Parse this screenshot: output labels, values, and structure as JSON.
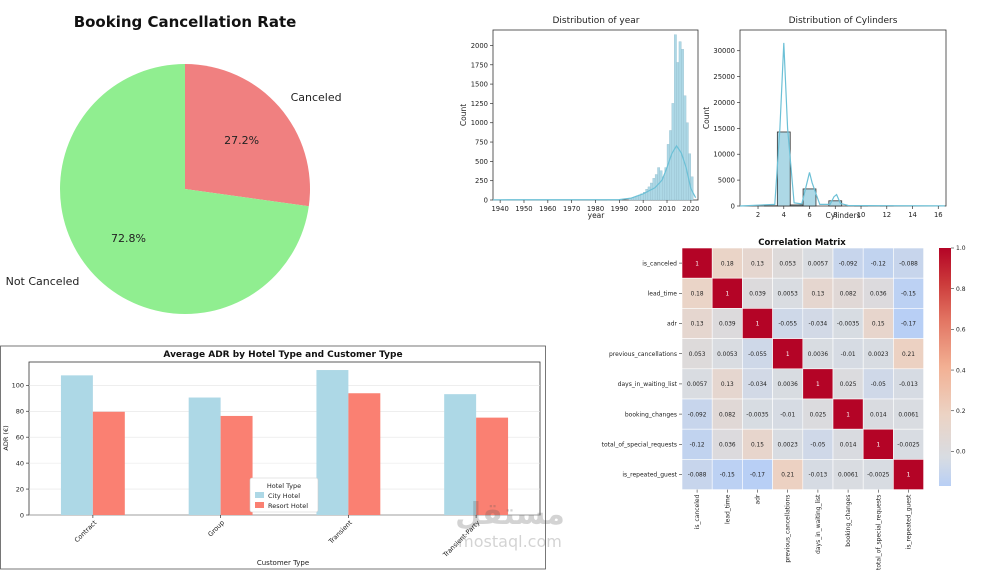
{
  "charts": {
    "pie": {
      "type": "pie",
      "title": "Booking Cancellation Rate",
      "labels": [
        "Not Canceled",
        "Canceled"
      ],
      "values": [
        72.8,
        27.2
      ],
      "value_labels": [
        "72.8%",
        "27.2%"
      ],
      "colors": [
        "#90ee90",
        "#f08080"
      ]
    },
    "year_hist": {
      "type": "bar",
      "title": "Distribution of year",
      "xlabel": "year",
      "ylabel": "Count",
      "xticks": [
        "1940",
        "1950",
        "1960",
        "1970",
        "1980",
        "1990",
        "2000",
        "2010",
        "2020"
      ],
      "yticks": [
        "0",
        "250",
        "500",
        "750",
        "1000",
        "1250",
        "1500",
        "1750",
        "2000"
      ],
      "xlim": [
        1937,
        2023
      ],
      "ylim": [
        0,
        2200
      ],
      "bins": [
        [
          1940,
          3
        ],
        [
          1950,
          3
        ],
        [
          1960,
          3
        ],
        [
          1970,
          3
        ],
        [
          1980,
          3
        ],
        [
          1985,
          5
        ],
        [
          1990,
          10
        ],
        [
          1994,
          20
        ],
        [
          1995,
          30
        ],
        [
          1996,
          40
        ],
        [
          1997,
          55
        ],
        [
          1998,
          65
        ],
        [
          1999,
          80
        ],
        [
          2000,
          100
        ],
        [
          2001,
          140
        ],
        [
          2002,
          170
        ],
        [
          2003,
          220
        ],
        [
          2004,
          280
        ],
        [
          2005,
          330
        ],
        [
          2006,
          420
        ],
        [
          2007,
          380
        ],
        [
          2008,
          300
        ],
        [
          2009,
          420
        ],
        [
          2010,
          720
        ],
        [
          2011,
          900
        ],
        [
          2012,
          1250
        ],
        [
          2013,
          2140
        ],
        [
          2014,
          1780
        ],
        [
          2015,
          2050
        ],
        [
          2016,
          1950
        ],
        [
          2017,
          1350
        ],
        [
          2018,
          1000
        ],
        [
          2019,
          600
        ],
        [
          2020,
          300
        ]
      ],
      "kde": [
        [
          1937,
          2
        ],
        [
          1990,
          5
        ],
        [
          1995,
          25
        ],
        [
          2000,
          80
        ],
        [
          2005,
          160
        ],
        [
          2008,
          260
        ],
        [
          2010,
          420
        ],
        [
          2012,
          600
        ],
        [
          2014,
          700
        ],
        [
          2016,
          610
        ],
        [
          2018,
          420
        ],
        [
          2020,
          150
        ],
        [
          2022,
          30
        ]
      ],
      "bar_color": "#add8e6",
      "line_color": "#6cc0d6"
    },
    "cyl_hist": {
      "type": "bar",
      "title": "Distribution of Cylinders",
      "xlabel": "Cylinders",
      "ylabel": "Count",
      "xticks": [
        "2",
        "4",
        "6",
        "8",
        "10",
        "12",
        "14",
        "16"
      ],
      "yticks": [
        "0",
        "5000",
        "10000",
        "15000",
        "20000",
        "25000",
        "30000"
      ],
      "xlim": [
        0.6,
        16.6
      ],
      "ylim": [
        0,
        34000
      ],
      "bars": [
        [
          3,
          50
        ],
        [
          4,
          14300
        ],
        [
          5,
          200
        ],
        [
          6,
          3300
        ],
        [
          8,
          1000
        ],
        [
          10,
          50
        ],
        [
          12,
          40
        ]
      ],
      "kde": [
        [
          0.6,
          0
        ],
        [
          3.3,
          300
        ],
        [
          3.7,
          15000
        ],
        [
          4.0,
          31500
        ],
        [
          4.3,
          15000
        ],
        [
          4.8,
          600
        ],
        [
          5.4,
          400
        ],
        [
          5.8,
          4500
        ],
        [
          6.0,
          6500
        ],
        [
          6.2,
          4500
        ],
        [
          6.8,
          300
        ],
        [
          7.6,
          300
        ],
        [
          7.9,
          1800
        ],
        [
          8.1,
          2200
        ],
        [
          8.4,
          500
        ],
        [
          9,
          100
        ],
        [
          12,
          60
        ],
        [
          16.5,
          20
        ]
      ],
      "bar_color": "#add8e6",
      "line_color": "#6cc0d6"
    },
    "adr_bar": {
      "type": "bar",
      "title": "Average ADR by Hotel Type and Customer Type",
      "xlabel": "Customer Type",
      "ylabel": "ADR (€)",
      "categories": [
        "Contract",
        "Group",
        "Transient",
        "Transient-Party"
      ],
      "series": [
        {
          "name": "City Hotel",
          "color": "#add8e6",
          "values": [
            107.7,
            90.6,
            111.8,
            93.2
          ]
        },
        {
          "name": "Resort Hotel",
          "color": "#fa8072",
          "values": [
            79.6,
            76.4,
            93.9,
            75.1
          ]
        }
      ],
      "yticks": [
        "0",
        "20",
        "40",
        "60",
        "80",
        "100"
      ],
      "ylim": [
        0,
        118
      ],
      "legend_title": "Hotel Type",
      "legend_position": "bottom-center"
    },
    "corr": {
      "type": "heatmap",
      "title": "Correlation Matrix",
      "labels": [
        "is_canceled",
        "lead_time",
        "adr",
        "previous_cancellations",
        "days_in_waiting_list",
        "booking_changes",
        "total_of_special_requests",
        "is_repeated_guest"
      ],
      "values": [
        [
          1,
          0.18,
          0.13,
          0.053,
          0.0057,
          -0.092,
          -0.12,
          -0.088
        ],
        [
          0.18,
          1,
          0.039,
          0.0053,
          0.13,
          0.082,
          0.036,
          -0.15
        ],
        [
          0.13,
          0.039,
          1,
          -0.055,
          -0.034,
          -0.0035,
          0.15,
          -0.17
        ],
        [
          0.053,
          0.0053,
          -0.055,
          1,
          0.0036,
          -0.01,
          0.0023,
          0.21
        ],
        [
          0.0057,
          0.13,
          -0.034,
          0.0036,
          1,
          0.025,
          -0.05,
          -0.013
        ],
        [
          -0.092,
          0.082,
          -0.0035,
          -0.01,
          0.025,
          1,
          0.014,
          0.0061
        ],
        [
          -0.12,
          0.036,
          0.15,
          0.0023,
          -0.05,
          0.014,
          1,
          -0.0025
        ],
        [
          -0.088,
          -0.15,
          -0.17,
          0.21,
          -0.013,
          0.0061,
          -0.0025,
          1
        ]
      ],
      "colorbar_ticks": [
        "1.0",
        "0.8",
        "0.6",
        "0.4",
        "0.2",
        "0.0"
      ],
      "colorbar_range": [
        -0.17,
        1.0
      ],
      "colormap": "coolwarm"
    }
  },
  "watermark": {
    "arabic": "مستقل",
    "latin": "mostaql.com"
  }
}
